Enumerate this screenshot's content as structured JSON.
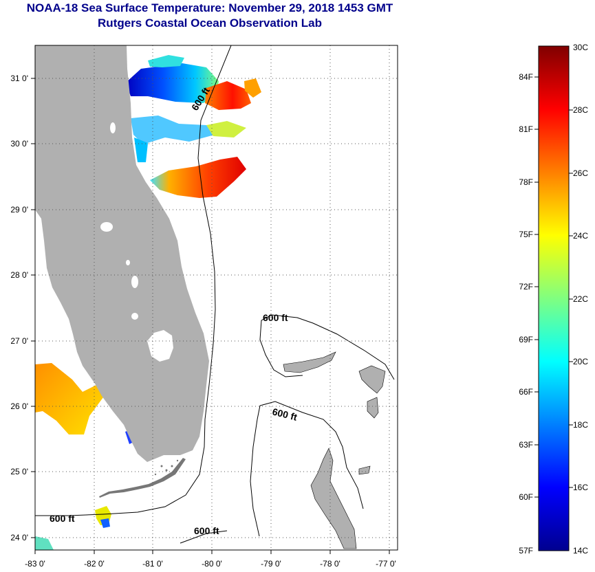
{
  "title": {
    "line1": "NOAA-18 Sea Surface Temperature:  November 29, 2018 1453 GMT",
    "line2": "Rutgers Coastal Ocean Observation Lab"
  },
  "map": {
    "lon_range": [
      -83,
      -77
    ],
    "lat_range": [
      23.8,
      31.4
    ],
    "lon_labels": [
      {
        "lon": -83,
        "text": "-83 0'"
      },
      {
        "lon": -82,
        "text": "-82 0'"
      },
      {
        "lon": -81,
        "text": "-81 0'"
      },
      {
        "lon": -80,
        "text": "-80 0'"
      },
      {
        "lon": -79,
        "text": "-79 0'"
      },
      {
        "lon": -78,
        "text": "-78 0'"
      },
      {
        "lon": -77,
        "text": "-77 0'"
      }
    ],
    "lat_labels": [
      {
        "lat": 31,
        "text": "31 0'"
      },
      {
        "lat": 30,
        "text": "30 0'"
      },
      {
        "lat": 29,
        "text": "29 0'"
      },
      {
        "lat": 28,
        "text": "28 0'"
      },
      {
        "lat": 27,
        "text": "27 0'"
      },
      {
        "lat": 26,
        "text": "26 0'"
      },
      {
        "lat": 25,
        "text": "25 0'"
      },
      {
        "lat": 24,
        "text": "24 0'"
      }
    ],
    "contour_labels": [
      "600 ft",
      "600 ft",
      "600 ft",
      "600 ft",
      "600 ft"
    ],
    "colors": {
      "land": "#b0b0b0",
      "background": "#ffffff",
      "grid": "#555555"
    }
  },
  "colorbar": {
    "fahrenheit_labels": [
      "84F",
      "81F",
      "78F",
      "75F",
      "72F",
      "69F",
      "66F",
      "63F",
      "60F",
      "57F"
    ],
    "celsius_labels": [
      "30C",
      "28C",
      "26C",
      "24C",
      "22C",
      "20C",
      "18C",
      "16C",
      "14C"
    ],
    "celsius_range": [
      14,
      30
    ],
    "colors": [
      "#00008f",
      "#0000ff",
      "#0080ff",
      "#00ffff",
      "#80ff80",
      "#ffff00",
      "#ff8000",
      "#ff0000",
      "#800000"
    ]
  }
}
